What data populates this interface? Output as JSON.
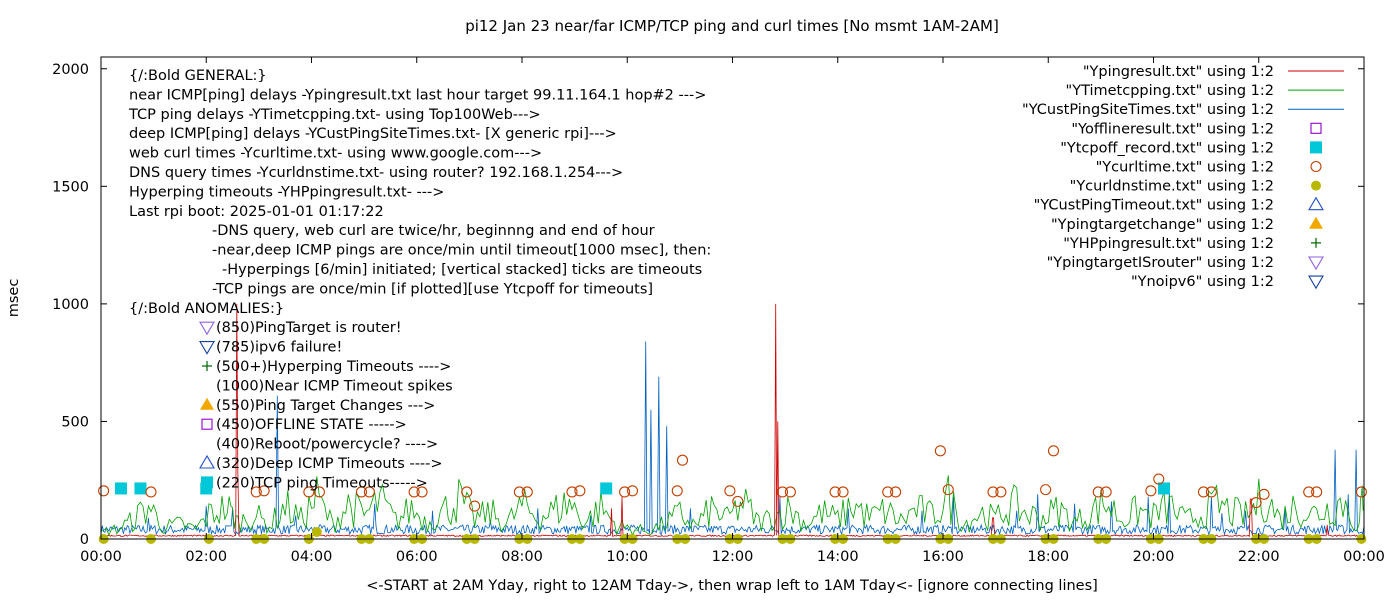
{
  "chart_data": {
    "type": "line",
    "title": "pi12 Jan 23  near/far ICMP/TCP ping and curl times [No msmt 1AM-2AM]",
    "xlabel": "<-START at 2AM Yday, right to 12AM Tday->, then wrap left to 1AM Tday<- [ignore connecting lines]",
    "ylabel": "msec",
    "xlim": [
      0,
      24
    ],
    "ylim": [
      0,
      2050
    ],
    "x_ticks": [
      0,
      2,
      4,
      6,
      8,
      10,
      12,
      14,
      16,
      18,
      20,
      22,
      24
    ],
    "x_tick_labels": [
      "00:00",
      "02:00",
      "04:00",
      "06:00",
      "08:00",
      "10:00",
      "12:00",
      "14:00",
      "16:00",
      "18:00",
      "20:00",
      "22:00",
      "00:00"
    ],
    "y_ticks": [
      0,
      500,
      1000,
      1500,
      2000
    ],
    "y_tick_labels": [
      "0",
      "500",
      "1000",
      "1500",
      "2000"
    ],
    "grid": false,
    "legend_position": "top-right",
    "annotation_lines": [
      "{/:Bold GENERAL:}",
      "near ICMP[ping] delays -Ypingresult.txt last hour target 99.11.164.1 hop#2 --->",
      "TCP ping delays -YTimetcpping.txt- using Top100Web--->",
      "deep ICMP[ping] delays -YCustPingSiteTimes.txt- [X generic rpi]--->",
      "web curl times -Ycurltime.txt- using www.google.com--->",
      "DNS query times -Ycurldnstime.txt- using router? 192.168.1.254--->",
      "Hyperping timeouts -YHPpingresult.txt- --->",
      "Last rpi boot: 2025-01-01 01:17:22",
      "-DNS query, web curl are twice/hr, beginnng and end of hour",
      "-near,deep ICMP pings are once/min until timeout[1000 msec], then:",
      "-Hyperpings [6/min] initiated; [vertical stacked] ticks are timeouts",
      "-TCP pings are once/min [if plotted][use Ytcpoff for timeouts]",
      "{/:Bold ANOMALIES:}",
      "(850)PingTarget is router!",
      "(785)ipv6 failure!",
      "(500+)Hyperping Timeouts ---->",
      "(1000)Near ICMP Timeout spikes",
      "(550)Ping Target Changes --->",
      "(450)OFFLINE STATE ----->",
      "(400)Reboot/powercycle? ---->",
      "(320)Deep ICMP Timeouts ---->",
      "(220)TCP ping Timeouts----->"
    ],
    "series": [
      {
        "name": "\"Ypingresult.txt\" using 1:2",
        "color": "#cc0000",
        "style": "line",
        "baseline": 14,
        "spikes": [
          [
            2.58,
            1000
          ],
          [
            2.6,
            300
          ],
          [
            9.7,
            130
          ],
          [
            9.9,
            180
          ],
          [
            12.82,
            1000
          ],
          [
            12.86,
            500
          ],
          [
            16.95,
            90
          ],
          [
            21.85,
            170
          ],
          [
            23.3,
            60
          ]
        ]
      },
      {
        "name": "\"YTimetcpping.txt\" using 1:2",
        "color": "#00a000",
        "style": "line",
        "x": [
          0,
          0.3,
          0.6,
          0.9,
          1.2,
          1.5,
          1.8,
          2.1,
          2.4,
          2.6,
          2.9,
          3.2,
          3.5,
          3.8,
          4.1,
          4.4,
          4.7,
          5.0,
          5.3,
          5.6,
          5.9,
          6.2,
          6.5,
          6.8,
          7.1,
          7.4,
          7.7,
          8.0,
          8.3,
          8.6,
          8.9,
          9.2,
          9.5,
          9.8,
          10.1,
          10.4,
          10.7,
          11.0,
          11.3,
          11.6,
          11.9,
          12.2,
          12.5,
          12.8,
          13.1,
          13.4,
          13.7,
          14.0,
          14.3,
          14.6,
          14.9,
          15.2,
          15.5,
          15.8,
          16.1,
          16.4,
          16.7,
          17.0,
          17.3,
          17.6,
          17.9,
          18.2,
          18.5,
          18.8,
          19.1,
          19.4,
          19.7,
          20.0,
          20.3,
          20.6,
          20.9,
          21.2,
          21.5,
          21.8,
          22.1,
          22.4,
          22.7,
          23.0,
          23.3,
          23.6,
          23.9,
          24.0
        ],
        "y": [
          40,
          60,
          110,
          200,
          70,
          90,
          60,
          160,
          190,
          100,
          150,
          80,
          200,
          120,
          250,
          90,
          210,
          140,
          230,
          110,
          180,
          100,
          170,
          240,
          120,
          160,
          90,
          200,
          130,
          170,
          220,
          100,
          190,
          80,
          60,
          50,
          90,
          150,
          80,
          180,
          120,
          220,
          100,
          140,
          180,
          90,
          160,
          120,
          210,
          130,
          170,
          110,
          180,
          140,
          250,
          90,
          160,
          120,
          210,
          150,
          130,
          180,
          100,
          160,
          220,
          120,
          170,
          140,
          200,
          110,
          150,
          210,
          160,
          140,
          270,
          120,
          200,
          150,
          180,
          230,
          60,
          350
        ]
      },
      {
        "name": "\"YCustPingSiteTimes.txt\" using 1:2",
        "color": "#0060c0",
        "style": "line",
        "baseline": 40,
        "spikes": [
          [
            0.9,
            90
          ],
          [
            2.0,
            140
          ],
          [
            2.5,
            130
          ],
          [
            3.35,
            610
          ],
          [
            3.7,
            100
          ],
          [
            5.2,
            150
          ],
          [
            6.3,
            120
          ],
          [
            7.4,
            80
          ],
          [
            8.3,
            130
          ],
          [
            9.3,
            100
          ],
          [
            10.35,
            840
          ],
          [
            10.45,
            550
          ],
          [
            10.6,
            690
          ],
          [
            10.75,
            480
          ],
          [
            11.2,
            130
          ],
          [
            12.9,
            180
          ],
          [
            14.2,
            130
          ],
          [
            15.6,
            120
          ],
          [
            16.2,
            180
          ],
          [
            17.4,
            120
          ],
          [
            17.8,
            190
          ],
          [
            18.5,
            150
          ],
          [
            19.2,
            160
          ],
          [
            19.9,
            180
          ],
          [
            20.3,
            200
          ],
          [
            21.1,
            180
          ],
          [
            21.3,
            110
          ],
          [
            21.75,
            120
          ],
          [
            22.5,
            130
          ],
          [
            23.45,
            380
          ],
          [
            23.7,
            190
          ],
          [
            23.85,
            380
          ]
        ]
      },
      {
        "name": "\"Yofflineresult.txt\" using 1:2",
        "color": "#9400d3",
        "style": "point-open-square",
        "x": [],
        "y": []
      },
      {
        "name": "\"Ytcpoff_record.txt\" using 1:2",
        "color": "#00c8d8",
        "style": "point-filled-square",
        "x": [
          0.38,
          0.75,
          2.0,
          9.6,
          20.2
        ],
        "y": [
          215,
          215,
          215,
          215,
          215
        ]
      },
      {
        "name": "\"Ycurltime.txt\" using 1:2",
        "color": "#c04000",
        "style": "point-open-circle",
        "x": [
          0.05,
          0.95,
          2.95,
          3.1,
          3.95,
          4.15,
          4.95,
          5.1,
          5.95,
          6.1,
          6.95,
          7.1,
          7.95,
          8.1,
          8.95,
          9.1,
          9.95,
          10.1,
          10.95,
          11.05,
          11.95,
          12.1,
          12.95,
          13.1,
          13.95,
          14.1,
          14.95,
          15.1,
          15.95,
          16.1,
          16.95,
          17.1,
          17.95,
          18.1,
          18.95,
          19.1,
          19.95,
          20.1,
          20.95,
          21.1,
          21.95,
          22.1,
          22.95,
          23.1,
          23.95
        ],
        "y": [
          205,
          200,
          200,
          205,
          200,
          200,
          200,
          200,
          200,
          200,
          200,
          140,
          200,
          200,
          200,
          205,
          200,
          205,
          205,
          335,
          205,
          160,
          200,
          200,
          200,
          200,
          200,
          200,
          375,
          210,
          200,
          200,
          210,
          375,
          200,
          200,
          205,
          255,
          200,
          200,
          155,
          190,
          200,
          200,
          200
        ]
      },
      {
        "name": "\"Ycurldnstime.txt\" using 1:2",
        "color": "#b8b800",
        "style": "point-filled-circle",
        "x": [
          0.05,
          0.95,
          2.05,
          2.95,
          3.1,
          3.95,
          4.1,
          4.95,
          5.1,
          5.95,
          6.1,
          6.95,
          7.1,
          7.95,
          8.1,
          8.95,
          9.1,
          9.95,
          10.1,
          10.95,
          11.1,
          11.95,
          12.1,
          12.95,
          13.1,
          13.95,
          14.1,
          14.95,
          15.1,
          15.95,
          16.1,
          16.95,
          17.1,
          17.95,
          18.1,
          18.95,
          19.1,
          19.95,
          20.1,
          20.95,
          21.1,
          21.95,
          22.1,
          22.95,
          23.1,
          23.95
        ],
        "y": [
          0,
          0,
          0,
          0,
          0,
          0,
          30,
          0,
          0,
          0,
          0,
          0,
          0,
          0,
          0,
          0,
          0,
          0,
          0,
          0,
          0,
          0,
          0,
          0,
          0,
          0,
          0,
          0,
          0,
          0,
          0,
          0,
          0,
          0,
          0,
          0,
          0,
          0,
          0,
          0,
          0,
          0,
          0,
          0,
          0,
          0
        ]
      },
      {
        "name": "\"YCustPingTimeout.txt\" using 1:2",
        "color": "#2050c8",
        "style": "point-open-triangle",
        "x": [],
        "y": []
      },
      {
        "name": "\"Ypingtargetchange\" using 1:2",
        "color": "#f0a800",
        "style": "point-filled-triangle",
        "x": [],
        "y": []
      },
      {
        "name": "\"YHPpingresult.txt\" using 1:2",
        "color": "#006400",
        "style": "point-plus",
        "x": [],
        "y": []
      },
      {
        "name": "\"YpingtargetISrouter\" using 1:2",
        "color": "#9060e0",
        "style": "point-open-down-triangle",
        "x": [],
        "y": []
      },
      {
        "name": "\"Ynoipv6\" using 1:2",
        "color": "#1040a0",
        "style": "point-open-down-triangle",
        "x": [],
        "y": []
      }
    ]
  }
}
